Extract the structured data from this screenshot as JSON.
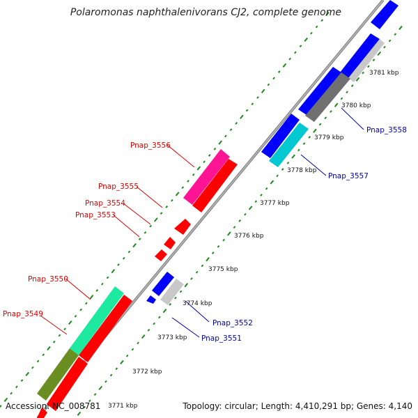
{
  "title": "Polaromonas naphthalenivorans CJ2, complete genome",
  "footer": {
    "accession": "Accession: NC_008781",
    "topology": "Topology: circular; Length: 4,410,291 bp; Genes: 4,140"
  },
  "colors": {
    "forward_label": "#e00000",
    "reverse_label": "#0000b0",
    "backbone": "#8c8c8c",
    "dots": "#1a8a1a"
  },
  "ticks": [
    {
      "label": "3771 kbp"
    },
    {
      "label": "3772 kbp"
    },
    {
      "label": "3773 kbp"
    },
    {
      "label": "3774 kbp"
    },
    {
      "label": "3775 kbp"
    },
    {
      "label": "3776 kbp"
    },
    {
      "label": "3777 kbp"
    },
    {
      "label": "3778 kbp"
    },
    {
      "label": "3779 kbp"
    },
    {
      "label": "3780 kbp"
    },
    {
      "label": "3781 kbp"
    }
  ],
  "gene_labels": [
    {
      "name": "Pnap_3556",
      "strand": "forward"
    },
    {
      "name": "Pnap_3555",
      "strand": "forward"
    },
    {
      "name": "Pnap_3554",
      "strand": "forward"
    },
    {
      "name": "Pnap_3553",
      "strand": "forward"
    },
    {
      "name": "Pnap_3550",
      "strand": "forward"
    },
    {
      "name": "Pnap_3549",
      "strand": "forward"
    },
    {
      "name": "Pnap_3558",
      "strand": "reverse"
    },
    {
      "name": "Pnap_3557",
      "strand": "reverse"
    },
    {
      "name": "Pnap_3552",
      "strand": "reverse"
    },
    {
      "name": "Pnap_3551",
      "strand": "reverse"
    }
  ]
}
